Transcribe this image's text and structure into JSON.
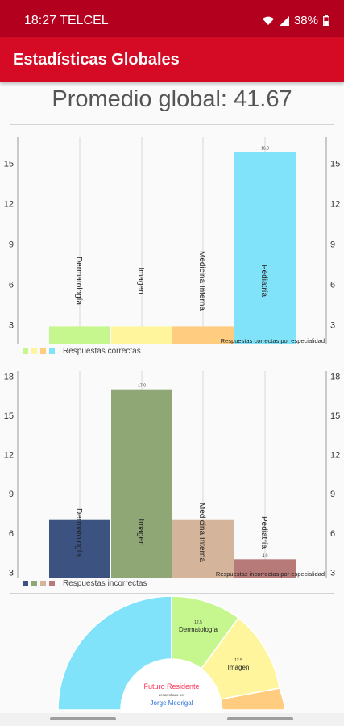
{
  "status_bar": {
    "time": "18:27",
    "carrier": "TELCEL",
    "battery": "38%"
  },
  "app_bar": {
    "title": "Estadísticas Globales"
  },
  "summary": {
    "average_label": "Promedio global: 41.67"
  },
  "colors": {
    "status": "#b3001e",
    "appbar": "#d50b25",
    "correct": [
      "#c6f78e",
      "#fff59d",
      "#ffcc80",
      "#81e3f9"
    ],
    "incorrect": [
      "#3c5280",
      "#8fa675",
      "#d4b59b",
      "#b87a78"
    ]
  },
  "chart_data": [
    {
      "type": "bar",
      "categories": [
        "Dermatología",
        "Imagen",
        "Medicina Interna",
        "Pediatría"
      ],
      "series": [
        {
          "name": "Respuestas correctas",
          "values": [
            3,
            3,
            3,
            16
          ]
        }
      ],
      "value_labels": [
        "",
        "",
        "",
        "16.0"
      ],
      "description": "Respuestas correctas por especialidad",
      "yticks": [
        "3",
        "6",
        "9",
        "12",
        "15"
      ],
      "ylim": [
        1.7,
        17.1
      ],
      "grid": true
    },
    {
      "type": "bar",
      "categories": [
        "Dermatología",
        "Imagen",
        "Medicina Interna",
        "Pediatría"
      ],
      "series": [
        {
          "name": "Respuestas incorrectas",
          "values": [
            7,
            17,
            7,
            4
          ]
        }
      ],
      "value_labels": [
        "",
        "17.0",
        "",
        "4.0"
      ],
      "description": "Respuestas incorrectas por especialidad",
      "yticks": [
        "3",
        "6",
        "9",
        "12",
        "15",
        "18"
      ],
      "ylim": [
        2.6,
        18.4
      ],
      "grid": true
    },
    {
      "type": "pie",
      "categories": [
        "Dermatología",
        "Imagen",
        "Medicina Interna",
        "Pediatría"
      ],
      "value_labels": [
        "12.5",
        "12.5",
        "",
        ""
      ],
      "center_text": "Futuro Residente",
      "center_subtext": "desarrollado por",
      "center_author": "Jorge Medrigal"
    }
  ]
}
